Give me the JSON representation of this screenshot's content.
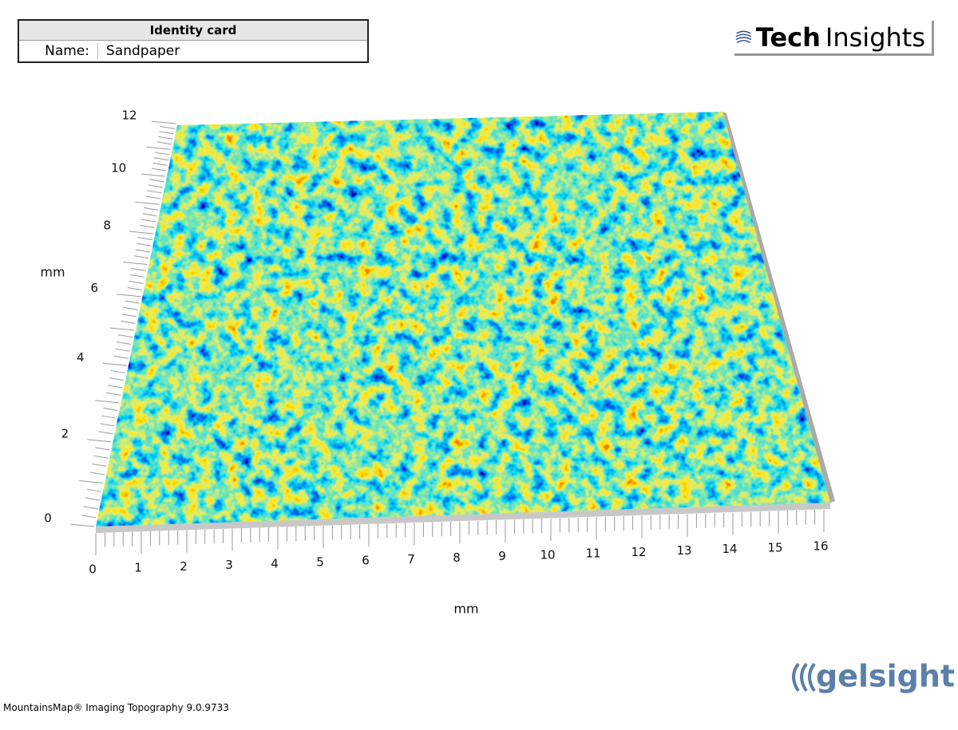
{
  "identity_card": {
    "title": "Identity card",
    "rows": [
      {
        "label": "Name:",
        "value": "Sandpaper"
      }
    ]
  },
  "logo": {
    "bold": "Tech",
    "light": "Insights"
  },
  "plot": {
    "x_axis": {
      "label": "mm",
      "ticks": [
        0,
        1,
        2,
        3,
        4,
        5,
        6,
        7,
        8,
        9,
        10,
        11,
        12,
        13,
        14,
        15,
        16
      ]
    },
    "y_axis": {
      "label": "mm",
      "ticks": [
        0,
        2,
        4,
        6,
        8,
        10,
        12
      ]
    }
  },
  "brand": "gelsight",
  "footer": "MountainsMap® Imaging Topography 9.0.9733"
}
